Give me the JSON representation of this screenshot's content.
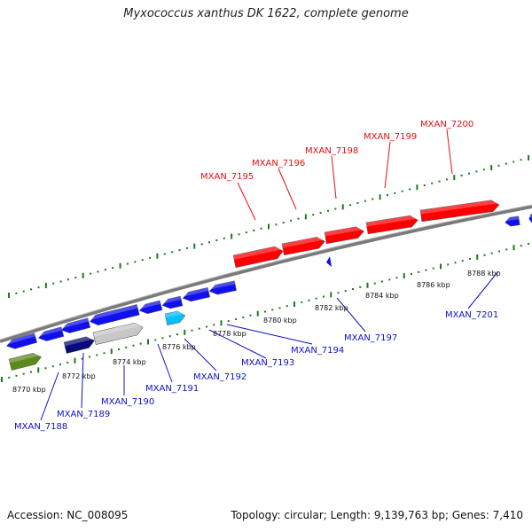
{
  "title": "Myxococcus xanthus DK 1622, complete genome",
  "footer": {
    "accession": "Accession: NC_008095",
    "summary": "Topology: circular; Length: 9,139,763 bp; Genes: 7,410"
  },
  "colors": {
    "forward_gene": "#ff0000",
    "reverse_gene": "#1010ee",
    "backbone": "#808080",
    "tick": "#1a7a1a",
    "label_forward": "#e01010",
    "label_reverse": "#0b12c8"
  },
  "tick_labels": [
    "8770 kbp",
    "8772 kbp",
    "8774 kbp",
    "8776 kbp",
    "8778 kbp",
    "8780 kbp",
    "8782 kbp",
    "8784 kbp",
    "8786 kbp",
    "8788 kbp"
  ],
  "forward_labels": [
    "MXAN_7195",
    "MXAN_7196",
    "MXAN_7198",
    "MXAN_7199",
    "MXAN_7200"
  ],
  "reverse_labels": [
    "MXAN_7188",
    "MXAN_7189",
    "MXAN_7190",
    "MXAN_7191",
    "MXAN_7192",
    "MXAN_7193",
    "MXAN_7194",
    "MXAN_7197",
    "MXAN_7201"
  ]
}
